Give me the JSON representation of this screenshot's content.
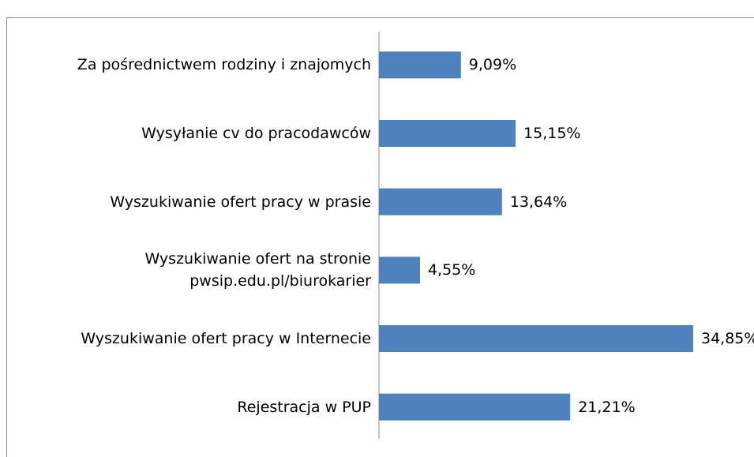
{
  "chart_data": {
    "type": "bar",
    "orientation": "horizontal",
    "categories": [
      "Za pośrednictwem rodziny i znajomych",
      "Wysyłanie cv do pracodawców",
      "Wyszukiwanie ofert pracy w prasie",
      "Wyszukiwanie ofert na stronie\npwsip.edu.pl/biurokarier",
      "Wyszukiwanie ofert pracy  w Internecie",
      "Rejestracja w PUP"
    ],
    "values": [
      9.09,
      15.15,
      13.64,
      4.55,
      34.85,
      21.21
    ],
    "value_labels": [
      "9,09%",
      "15,15%",
      "13,64%",
      "4,55%",
      "34,85%",
      "21,21%"
    ],
    "color": "#4f81bd"
  }
}
